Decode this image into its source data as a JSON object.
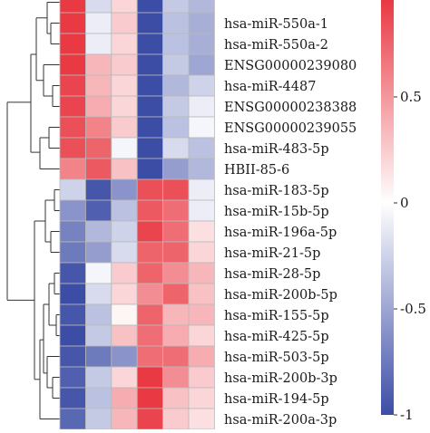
{
  "chart_data": {
    "type": "heatmap",
    "title": "",
    "xlabel": "",
    "ylabel": "",
    "rows": [
      "",
      "hsa-miR-550a-1",
      "hsa-miR-550a-2",
      "ENSG00000239080",
      "hsa-miR-4487",
      "ENSG00000238388",
      "ENSG00000239055",
      "hsa-miR-483-5p",
      "HBII-85-6",
      "hsa-miR-183-5p",
      "hsa-miR-15b-5p",
      "hsa-miR-196a-5p",
      "hsa-miR-21-5p",
      "hsa-miR-28-5p",
      "hsa-miR-200b-5p",
      "hsa-miR-155-5p",
      "hsa-miR-425-5p",
      "hsa-miR-503-5p",
      "hsa-miR-200b-3p",
      "hsa-miR-194-5p",
      "hsa-miR-200a-3p"
    ],
    "values": [
      [
        0.95,
        -0.2,
        0.2,
        -1.0,
        -0.3,
        -0.4
      ],
      [
        0.95,
        -0.1,
        0.25,
        -1.0,
        -0.35,
        -0.45
      ],
      [
        0.95,
        -0.1,
        0.2,
        -1.0,
        -0.35,
        -0.45
      ],
      [
        0.95,
        0.35,
        0.25,
        -1.0,
        -0.3,
        -0.5
      ],
      [
        0.9,
        0.35,
        0.2,
        -1.0,
        -0.4,
        -0.25
      ],
      [
        0.9,
        0.4,
        0.2,
        -1.0,
        -0.3,
        -0.1
      ],
      [
        0.85,
        0.6,
        0.25,
        -1.0,
        -0.35,
        -0.05
      ],
      [
        0.85,
        0.75,
        -0.05,
        -1.0,
        -0.2,
        -0.35
      ],
      [
        0.6,
        0.8,
        0.3,
        -1.0,
        -0.55,
        -0.4
      ],
      [
        -0.25,
        -0.95,
        -0.6,
        0.85,
        0.85,
        -0.1
      ],
      [
        -0.6,
        -0.9,
        -0.35,
        0.8,
        0.7,
        -0.1
      ],
      [
        -0.7,
        -0.4,
        -0.25,
        0.9,
        0.7,
        0.15
      ],
      [
        -0.75,
        -0.55,
        -0.2,
        0.75,
        0.75,
        0.2
      ],
      [
        -0.95,
        -0.05,
        0.25,
        0.75,
        0.55,
        0.35
      ],
      [
        -1.0,
        -0.2,
        0.2,
        0.55,
        0.75,
        0.3
      ],
      [
        -0.95,
        -0.35,
        0.05,
        0.75,
        0.35,
        0.35
      ],
      [
        -1.0,
        -0.3,
        0.3,
        0.7,
        0.4,
        0.2
      ],
      [
        -0.95,
        -0.75,
        -0.6,
        0.7,
        0.7,
        0.4
      ],
      [
        -0.9,
        -0.3,
        0.2,
        0.95,
        0.55,
        0.25
      ],
      [
        -0.95,
        -0.35,
        0.4,
        0.95,
        0.3,
        0.2
      ],
      [
        -0.85,
        -0.3,
        0.35,
        0.9,
        0.25,
        0.15
      ]
    ],
    "color_scale": {
      "min": -1,
      "max": 1,
      "low_color": "#3c4da6",
      "mid_color": "#ffffff",
      "high_color": "#e8303a"
    },
    "colorbar_ticks": [
      "0.5",
      "0",
      "-0.5",
      "-1"
    ],
    "colorbar_tick_values": [
      0.5,
      0,
      -0.5,
      -1
    ],
    "dendrogram": "row-clustered, two main clusters",
    "legend_placement": "right"
  }
}
